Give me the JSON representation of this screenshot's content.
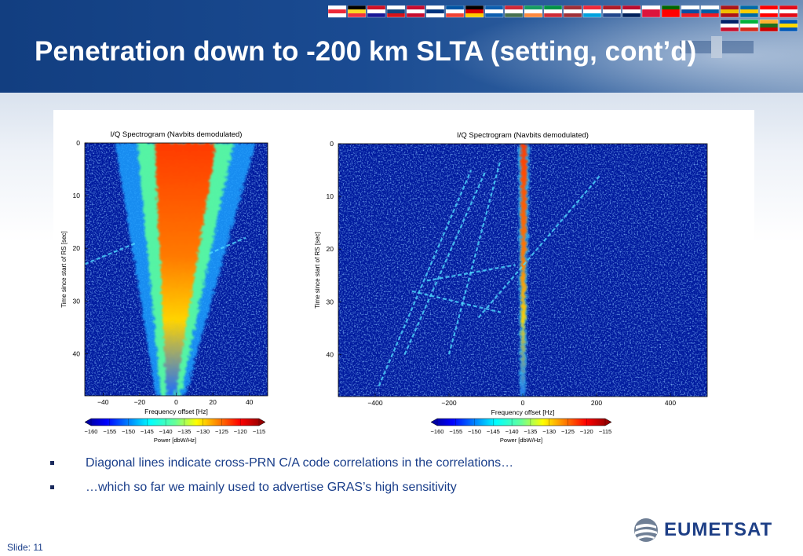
{
  "slide": {
    "title": "Penetration down to -200 km SLTA (setting, cont’d)",
    "slide_label": "Slide: 11",
    "logo_text": "EUMETSAT",
    "flags_count": 28
  },
  "bullets": [
    {
      "text": "Diagonal lines indicate cross-PRN C/A code correlations in the correlations…"
    },
    {
      "text": "…which so far we mainly used to advertise GRAS’s high sensitivity"
    }
  ],
  "colorbar_ticks": [
    "−160",
    "−155",
    "−150",
    "−145",
    "−140",
    "−135",
    "−130",
    "−125",
    "−120",
    "−115"
  ],
  "chart_data": [
    {
      "type": "heatmap",
      "title": "I/Q Spectrogram (Navbits demodulated)",
      "xlabel": "Frequency offset [Hz]",
      "ylabel": "Time since start of RS [sec]",
      "xlim": [
        -50,
        50
      ],
      "ylim": [
        48,
        0
      ],
      "xticks": [
        -40,
        -20,
        0,
        20,
        40
      ],
      "xtick_labels": [
        "−40",
        "−20",
        "0",
        "20",
        "40"
      ],
      "yticks": [
        0,
        10,
        20,
        30,
        40
      ],
      "colorbar_label": "Power [dbW/Hz]",
      "colorbar_range": [
        -160,
        -115
      ],
      "colormap": "jet",
      "features": [
        {
          "kind": "main-signal-cone",
          "time": [
            0,
            48
          ],
          "center_hz": [
            5,
            -3
          ],
          "width_hz": [
            24,
            4
          ],
          "peak_dbw": -115
        },
        {
          "kind": "diagonal-line",
          "from": [
            -50,
            23
          ],
          "to": [
            -22,
            19
          ]
        },
        {
          "kind": "diagonal-line",
          "from": [
            18,
            21
          ],
          "to": [
            38,
            18
          ]
        }
      ]
    },
    {
      "type": "heatmap",
      "title": "I/Q Spectrogram (Navbits demodulated)",
      "xlabel": "Frequency offset [Hz]",
      "ylabel": "Time since start of RS [sec]",
      "xlim": [
        -500,
        500
      ],
      "ylim": [
        48,
        0
      ],
      "xticks": [
        -400,
        -200,
        0,
        200,
        400
      ],
      "xtick_labels": [
        "−400",
        "−200",
        "0",
        "200",
        "400"
      ],
      "yticks": [
        0,
        10,
        20,
        30,
        40
      ],
      "colorbar_label": "Power [dbW/Hz]",
      "colorbar_range": [
        -160,
        -115
      ],
      "colormap": "jet",
      "features": [
        {
          "kind": "main-signal-line",
          "time": [
            0,
            48
          ],
          "center_hz": [
            3,
            0
          ],
          "peak_dbw": -115
        },
        {
          "kind": "diagonal-line",
          "from": [
            -390,
            46
          ],
          "to": [
            -140,
            5
          ]
        },
        {
          "kind": "diagonal-line",
          "from": [
            -320,
            40
          ],
          "to": [
            -100,
            5
          ]
        },
        {
          "kind": "diagonal-line",
          "from": [
            -200,
            40
          ],
          "to": [
            -60,
            3
          ]
        },
        {
          "kind": "diagonal-line",
          "from": [
            -120,
            33
          ],
          "to": [
            210,
            6
          ]
        },
        {
          "kind": "diagonal-line",
          "from": [
            -260,
            26
          ],
          "to": [
            -20,
            23
          ]
        },
        {
          "kind": "diagonal-line",
          "from": [
            -300,
            28
          ],
          "to": [
            -60,
            32
          ]
        }
      ]
    }
  ]
}
